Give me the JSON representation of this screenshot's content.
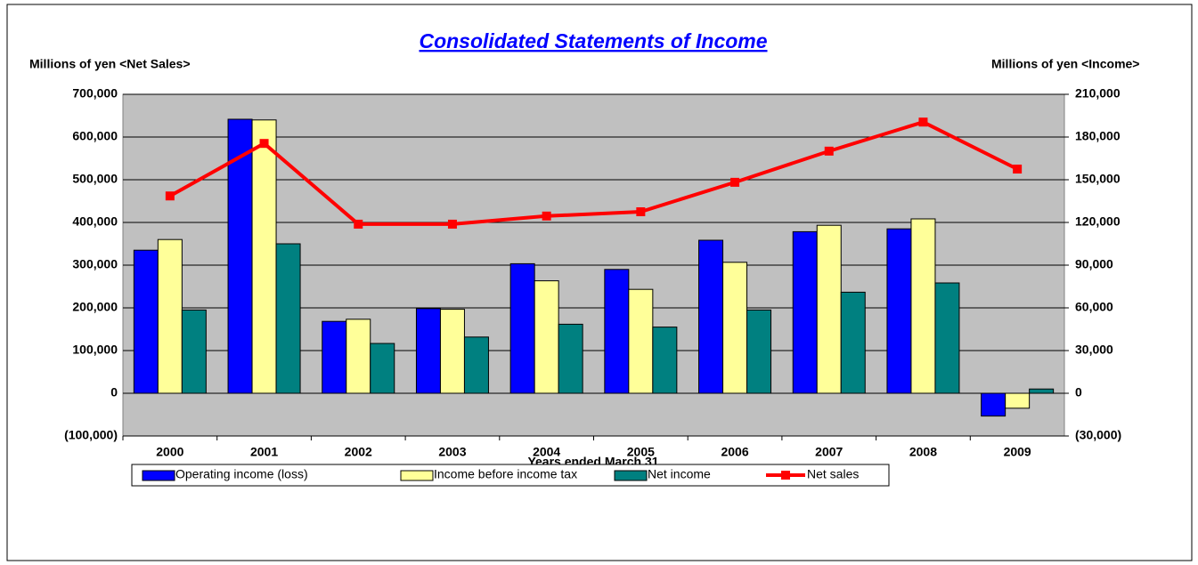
{
  "chart_data": {
    "type": "bar",
    "title": "Consolidated Statements of Income",
    "y_label": "Millions of yen <Net Sales>",
    "y2_label": "Millions of yen <Income>",
    "x_label": "Years ended March 31",
    "categories": [
      "2000",
      "2001",
      "2002",
      "2003",
      "2004",
      "2005",
      "2006",
      "2007",
      "2008",
      "2009"
    ],
    "series": [
      {
        "name": "Operating income (loss)",
        "type": "bar",
        "axis": "y2",
        "color": "#0000ff",
        "values": [
          100500,
          192500,
          50500,
          59500,
          91000,
          87000,
          107500,
          113500,
          115500,
          -16000
        ]
      },
      {
        "name": "Income before income tax",
        "type": "bar",
        "axis": "y2",
        "color": "#ffff99",
        "values": [
          108000,
          192000,
          52000,
          59000,
          79000,
          73000,
          92000,
          118000,
          122500,
          -10500
        ]
      },
      {
        "name": "Net income",
        "type": "bar",
        "axis": "y2",
        "color": "#008080",
        "values": [
          58500,
          105000,
          35000,
          39500,
          48500,
          46500,
          58500,
          71000,
          77500,
          3000
        ]
      },
      {
        "name": "Net sales",
        "type": "line",
        "axis": "y",
        "color": "#ff0000",
        "values": [
          462000,
          585000,
          396000,
          396000,
          415000,
          425000,
          494000,
          567000,
          635000,
          525000
        ]
      }
    ],
    "ylim": [
      -100000,
      700000
    ],
    "yticks": [
      {
        "value": -100000,
        "label": "(100,000)"
      },
      0,
      {
        "value": 100000,
        "label": "100,000"
      },
      {
        "value": 200000,
        "label": "200,000"
      },
      {
        "value": 300000,
        "label": "300,000"
      },
      {
        "value": 400000,
        "label": "400,000"
      },
      {
        "value": 500000,
        "label": "500,000"
      },
      {
        "value": 600000,
        "label": "600,000"
      },
      {
        "value": 700000,
        "label": "700,000"
      }
    ],
    "y2lim": [
      -30000,
      210000
    ],
    "y2ticks": [
      {
        "value": -30000,
        "label": "(30,000)"
      },
      0,
      {
        "value": 30000,
        "label": "30,000"
      },
      {
        "value": 60000,
        "label": "60,000"
      },
      {
        "value": 90000,
        "label": "90,000"
      },
      {
        "value": 120000,
        "label": "120,000"
      },
      {
        "value": 150000,
        "label": "150,000"
      },
      {
        "value": 180000,
        "label": "180,000"
      },
      {
        "value": 210000,
        "label": "210,000"
      }
    ],
    "grid": true,
    "plot_background": "#c0c0c0",
    "legend": "bottom"
  }
}
